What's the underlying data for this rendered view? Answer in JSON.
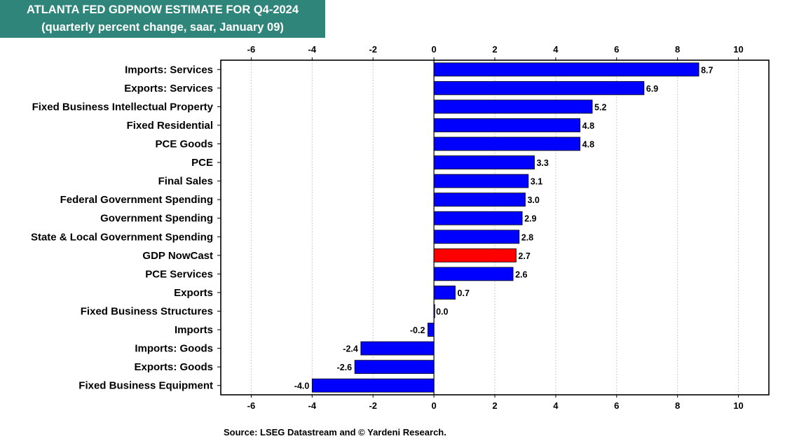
{
  "header": {
    "title": "ATLANTA FED GDPNOW ESTIMATE FOR Q4-2024",
    "subtitle": "(quarterly percent change, saar, January 09)"
  },
  "footer": {
    "source": "Source: LSEG Datastream and © Yardeni Research."
  },
  "colors": {
    "title_bg": "#2f8579",
    "bar_default": "#0000ff",
    "bar_highlight": "#ff0000",
    "grid": "#c8c8c8"
  },
  "chart_data": {
    "type": "bar",
    "orientation": "horizontal",
    "title": "ATLANTA FED GDPNOW ESTIMATE FOR Q4-2024",
    "subtitle": "(quarterly percent change, saar, January 09)",
    "xlim": [
      -7,
      11
    ],
    "xticks": [
      -6,
      -4,
      -2,
      0,
      2,
      4,
      6,
      8,
      10
    ],
    "grid": "vertical dotted",
    "highlight_category": "GDP NowCast",
    "categories": [
      "Imports: Services",
      "Exports: Services",
      "Fixed Business Intellectual Property",
      "Fixed Residential",
      "PCE Goods",
      "PCE",
      "Final Sales",
      "Federal Government Spending",
      "Government Spending",
      "State & Local Government Spending",
      "GDP NowCast",
      "PCE Services",
      "Exports",
      "Fixed Business Structures",
      "Imports",
      "Imports: Goods",
      "Exports: Goods",
      "Fixed Business Equipment"
    ],
    "values": [
      8.7,
      6.9,
      5.2,
      4.8,
      4.8,
      3.3,
      3.1,
      3.0,
      2.9,
      2.8,
      2.7,
      2.6,
      0.7,
      0.0,
      -0.2,
      -2.4,
      -2.6,
      -4.0
    ],
    "labels": [
      "8.7",
      "6.9",
      "5.2",
      "4.8",
      "4.8",
      "3.3",
      "3.1",
      "3.0",
      "2.9",
      "2.8",
      "2.7",
      "2.6",
      "0.7",
      "0.0",
      "-0.2",
      "-2.4",
      "-2.6",
      "-4.0"
    ]
  }
}
